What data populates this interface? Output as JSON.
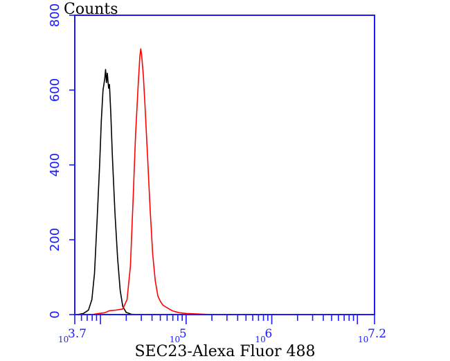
{
  "chart_data": {
    "type": "line",
    "title": "",
    "xlabel": "SEC23-Alexa Fluor 488",
    "ylabel": "Counts",
    "x_scale": "log",
    "xlim_log10": [
      3.7,
      7.2
    ],
    "ylim": [
      0,
      800
    ],
    "y_ticks": [
      {
        "value": 0,
        "label": "0"
      },
      {
        "value": 200,
        "label": "200"
      },
      {
        "value": 400,
        "label": "400"
      },
      {
        "value": 600,
        "label": "600"
      },
      {
        "value": 800,
        "label": "800"
      }
    ],
    "x_tick_labels": [
      {
        "log10": 3.7,
        "base": "10",
        "exp": "3.7"
      },
      {
        "log10": 5,
        "base": "10",
        "exp": "5"
      },
      {
        "log10": 6,
        "base": "10",
        "exp": "6"
      },
      {
        "log10": 7.2,
        "base": "10",
        "exp": "7.2"
      }
    ],
    "grid": false,
    "series": [
      {
        "color": "#000000",
        "points": [
          [
            3.73,
            0
          ],
          [
            3.8,
            3
          ],
          [
            3.86,
            12
          ],
          [
            3.9,
            40
          ],
          [
            3.93,
            110
          ],
          [
            3.96,
            250
          ],
          [
            3.99,
            400
          ],
          [
            4.01,
            520
          ],
          [
            4.03,
            600
          ],
          [
            4.05,
            630
          ],
          [
            4.06,
            655
          ],
          [
            4.07,
            620
          ],
          [
            4.08,
            645
          ],
          [
            4.095,
            605
          ],
          [
            4.105,
            615
          ],
          [
            4.12,
            540
          ],
          [
            4.14,
            420
          ],
          [
            4.17,
            270
          ],
          [
            4.2,
            150
          ],
          [
            4.23,
            65
          ],
          [
            4.26,
            22
          ],
          [
            4.3,
            6
          ],
          [
            4.36,
            1
          ],
          [
            4.45,
            0
          ]
        ]
      },
      {
        "color": "#ff0000",
        "points": [
          [
            3.9,
            0
          ],
          [
            3.98,
            3
          ],
          [
            4.05,
            5
          ],
          [
            4.1,
            10
          ],
          [
            4.18,
            12
          ],
          [
            4.26,
            15
          ],
          [
            4.31,
            40
          ],
          [
            4.35,
            130
          ],
          [
            4.38,
            300
          ],
          [
            4.41,
            480
          ],
          [
            4.44,
            610
          ],
          [
            4.46,
            690
          ],
          [
            4.47,
            710
          ],
          [
            4.48,
            695
          ],
          [
            4.5,
            640
          ],
          [
            4.52,
            560
          ],
          [
            4.55,
            420
          ],
          [
            4.58,
            280
          ],
          [
            4.61,
            160
          ],
          [
            4.64,
            90
          ],
          [
            4.67,
            50
          ],
          [
            4.7,
            35
          ],
          [
            4.73,
            25
          ],
          [
            4.78,
            18
          ],
          [
            4.84,
            10
          ],
          [
            4.92,
            5
          ],
          [
            5.0,
            3
          ],
          [
            5.1,
            2
          ],
          [
            5.3,
            0
          ]
        ]
      }
    ]
  }
}
